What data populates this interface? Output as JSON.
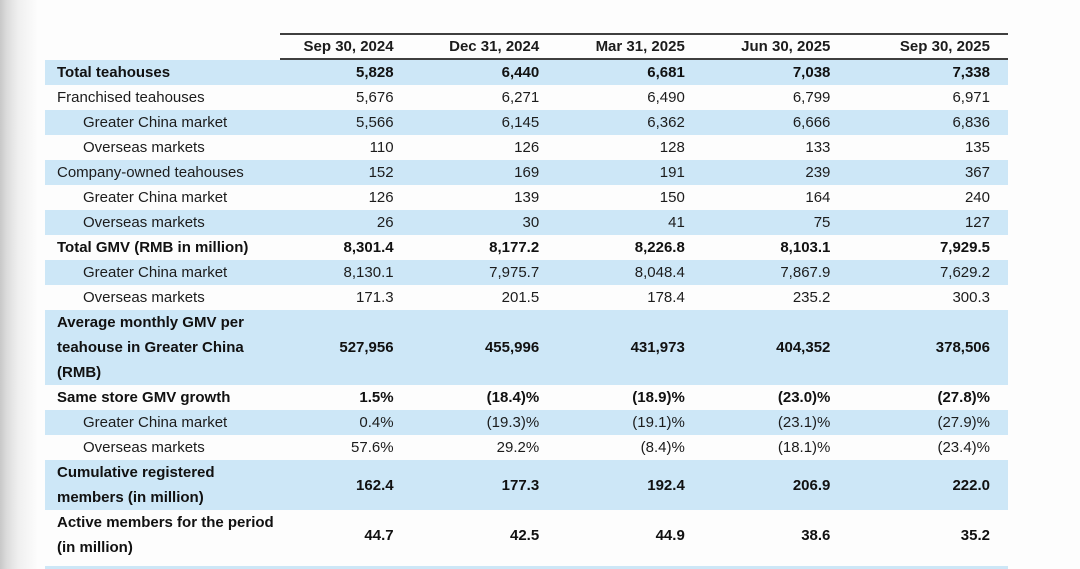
{
  "table": {
    "columns": [
      "Sep 30, 2024",
      "Dec 31, 2024",
      "Mar 31, 2025",
      "Jun 30, 2025",
      "Sep 30, 2025"
    ],
    "rows": [
      {
        "label": "Total teahouses",
        "values": [
          "5,828",
          "6,440",
          "6,681",
          "7,038",
          "7,338"
        ],
        "bold": true,
        "indent": 0,
        "shaded": true
      },
      {
        "label": "Franchised teahouses",
        "values": [
          "5,676",
          "6,271",
          "6,490",
          "6,799",
          "6,971"
        ],
        "bold": false,
        "indent": 0,
        "shaded": false
      },
      {
        "label": "Greater China market",
        "values": [
          "5,566",
          "6,145",
          "6,362",
          "6,666",
          "6,836"
        ],
        "bold": false,
        "indent": 1,
        "shaded": true
      },
      {
        "label": "Overseas markets",
        "values": [
          "110",
          "126",
          "128",
          "133",
          "135"
        ],
        "bold": false,
        "indent": 1,
        "shaded": false
      },
      {
        "label": "Company-owned teahouses",
        "values": [
          "152",
          "169",
          "191",
          "239",
          "367"
        ],
        "bold": false,
        "indent": 0,
        "shaded": true
      },
      {
        "label": "Greater China market",
        "values": [
          "126",
          "139",
          "150",
          "164",
          "240"
        ],
        "bold": false,
        "indent": 1,
        "shaded": false
      },
      {
        "label": "Overseas markets",
        "values": [
          "26",
          "30",
          "41",
          "75",
          "127"
        ],
        "bold": false,
        "indent": 1,
        "shaded": true
      },
      {
        "label": "Total GMV (RMB in million)",
        "values": [
          "8,301.4",
          "8,177.2",
          "8,226.8",
          "8,103.1",
          "7,929.5"
        ],
        "bold": true,
        "indent": 0,
        "shaded": false
      },
      {
        "label": "Greater China market",
        "values": [
          "8,130.1",
          "7,975.7",
          "8,048.4",
          "7,867.9",
          "7,629.2"
        ],
        "bold": false,
        "indent": 1,
        "shaded": true
      },
      {
        "label": "Overseas markets",
        "values": [
          "171.3",
          "201.5",
          "178.4",
          "235.2",
          "300.3"
        ],
        "bold": false,
        "indent": 1,
        "shaded": false
      },
      {
        "label": "Average monthly GMV per teahouse in Greater China (RMB)",
        "values": [
          "527,956",
          "455,996",
          "431,973",
          "404,352",
          "378,506"
        ],
        "bold": true,
        "indent": 0,
        "shaded": true
      },
      {
        "label": "Same store GMV growth",
        "values": [
          "1.5%",
          "(18.4)%",
          "(18.9)%",
          "(23.0)%",
          "(27.8)%"
        ],
        "bold": true,
        "indent": 0,
        "shaded": false
      },
      {
        "label": "Greater China market",
        "values": [
          "0.4%",
          "(19.3)%",
          "(19.1)%",
          "(23.1)%",
          "(27.9)%"
        ],
        "bold": false,
        "indent": 1,
        "shaded": true
      },
      {
        "label": "Overseas markets",
        "values": [
          "57.6%",
          "29.2%",
          "(8.4)%",
          "(18.1)%",
          "(23.4)%"
        ],
        "bold": false,
        "indent": 1,
        "shaded": false
      },
      {
        "label": "Cumulative registered members (in million)",
        "values": [
          "162.4",
          "177.3",
          "192.4",
          "206.9",
          "222.0"
        ],
        "bold": true,
        "indent": 0,
        "shaded": true
      },
      {
        "label": "Active members for the period (in million)",
        "values": [
          "44.7",
          "42.5",
          "44.9",
          "38.6",
          "35.2"
        ],
        "bold": true,
        "indent": 0,
        "shaded": false
      }
    ]
  },
  "colors": {
    "row_shade": "#cde7f7",
    "rule": "#3f3f3f",
    "text": "#1c1c1c"
  }
}
